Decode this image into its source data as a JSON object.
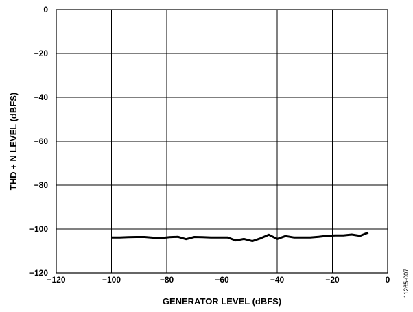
{
  "chart_data": {
    "type": "line",
    "xlabel": "GENERATOR LEVEL (dBFS)",
    "ylabel": "THD + N LEVEL (dBFS)",
    "xlim": [
      -120,
      0
    ],
    "ylim": [
      -120,
      0
    ],
    "x_ticks": [
      -120,
      -100,
      -80,
      -60,
      -40,
      -20,
      0
    ],
    "y_ticks": [
      0,
      -20,
      -40,
      -60,
      -80,
      -100,
      -120
    ],
    "x_tick_labels": [
      "−120",
      "−100",
      "−80",
      "−60",
      "−40",
      "−20",
      "0"
    ],
    "y_tick_labels": [
      "0",
      "−20",
      "−40",
      "−60",
      "−80",
      "−100",
      "−120"
    ],
    "grid": true,
    "figure_id": "11265-007",
    "series": [
      {
        "color": "#000000",
        "x": [
          -100,
          -97,
          -94,
          -91,
          -88,
          -85,
          -82,
          -79,
          -76,
          -73,
          -70,
          -67,
          -64,
          -61,
          -58,
          -55,
          -52,
          -49,
          -46,
          -43,
          -40,
          -37,
          -34,
          -31,
          -28,
          -25,
          -22,
          -19,
          -16,
          -13,
          -10,
          -7
        ],
        "y": [
          -103.8,
          -103.8,
          -103.7,
          -103.6,
          -103.6,
          -103.9,
          -104.1,
          -103.7,
          -103.5,
          -104.6,
          -103.6,
          -103.7,
          -103.8,
          -103.8,
          -103.8,
          -105.2,
          -104.5,
          -105.5,
          -104.2,
          -102.6,
          -104.5,
          -103.2,
          -103.8,
          -103.8,
          -103.8,
          -103.5,
          -103.1,
          -102.9,
          -102.9,
          -102.5,
          -103.1,
          -101.6
        ]
      }
    ]
  }
}
